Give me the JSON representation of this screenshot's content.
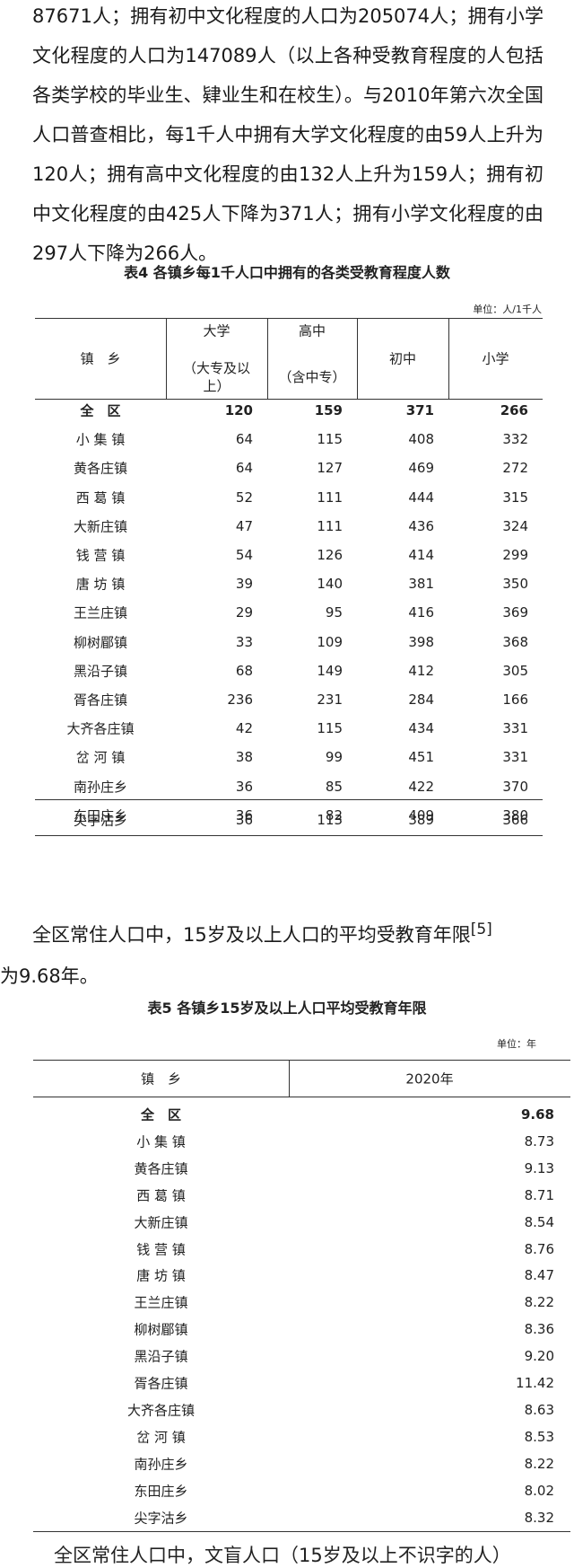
{
  "intro_paragraph": "87671人；拥有初中文化程度的人口为205074人；拥有小学文化程度的人口为147089人（以上各种受教育程度的人包括各类学校的毕业生、肄业生和在校生）。与2010年第六次全国人口普查相比，每1千人中拥有大学文化程度的由59人上升为120人；拥有高中文化程度的由132人上升为159人；拥有初中文化程度的由425人下降为371人；拥有小学文化程度的由297人下降为266人。",
  "table4": {
    "title": "表4 各镇乡每1千人口中拥有的各类受教育程度人数",
    "unit": "单位：人/1千人",
    "header": [
      {
        "name": "镇　乡"
      },
      {
        "name": "大学",
        "note": "（大专及以上）"
      },
      {
        "name": "高中",
        "note": "（含中专）"
      },
      {
        "name": "初中"
      },
      {
        "name": "小学"
      }
    ],
    "rows": [
      [
        "全　区",
        "120",
        "159",
        "371",
        "266"
      ],
      [
        "小 集 镇",
        "64",
        "115",
        "408",
        "332"
      ],
      [
        "黄各庄镇",
        "64",
        "127",
        "469",
        "272"
      ],
      [
        "西 葛 镇",
        "52",
        "111",
        "444",
        "315"
      ],
      [
        "大新庄镇",
        "47",
        "111",
        "436",
        "324"
      ],
      [
        "钱 营 镇",
        "54",
        "126",
        "414",
        "299"
      ],
      [
        "唐 坊 镇",
        "39",
        "140",
        "381",
        "350"
      ],
      [
        "王兰庄镇",
        "29",
        "95",
        "416",
        "369"
      ],
      [
        "柳树郿镇",
        "33",
        "109",
        "398",
        "368"
      ],
      [
        "黑沿子镇",
        "68",
        "149",
        "412",
        "305"
      ],
      [
        "胥各庄镇",
        "236",
        "231",
        "284",
        "166"
      ],
      [
        "大齐各庄镇",
        "42",
        "115",
        "434",
        "331"
      ],
      [
        "岔 河 镇",
        "38",
        "99",
        "451",
        "331"
      ],
      [
        "南孙庄乡",
        "36",
        "85",
        "422",
        "370"
      ],
      [
        "东田庄乡",
        "36",
        "82",
        "409",
        "380"
      ],
      [
        "尖字沽乡",
        "36",
        "113",
        "389",
        "366"
      ]
    ]
  },
  "paragraph2": {
    "text": "全区常住人口中，15岁及以上人口的平均受教育年限",
    "footnote": "[5]",
    "tail": "为9.68年。"
  },
  "table5": {
    "title": "表5 各镇乡15岁及以上人口平均受教育年限",
    "unit": "单位：年",
    "header": [
      "镇　乡",
      "2020年"
    ],
    "rows": [
      [
        "全　区",
        "9.68"
      ],
      [
        "小 集 镇",
        "8.73"
      ],
      [
        "黄各庄镇",
        "9.13"
      ],
      [
        "西 葛 镇",
        "8.71"
      ],
      [
        "大新庄镇",
        "8.54"
      ],
      [
        "钱 营 镇",
        "8.76"
      ],
      [
        "唐 坊 镇",
        "8.47"
      ],
      [
        "王兰庄镇",
        "8.22"
      ],
      [
        "柳树郿镇",
        "8.36"
      ],
      [
        "黑沿子镇",
        "9.20"
      ],
      [
        "胥各庄镇",
        "11.42"
      ],
      [
        "大齐各庄镇",
        "8.63"
      ],
      [
        "岔 河 镇",
        "8.53"
      ],
      [
        "南孙庄乡",
        "8.22"
      ],
      [
        "东田庄乡",
        "8.02"
      ],
      [
        "尖字沽乡",
        "8.32"
      ]
    ]
  },
  "closing": "全区常住人口中，文盲人口（15岁及以上不识字的人）"
}
